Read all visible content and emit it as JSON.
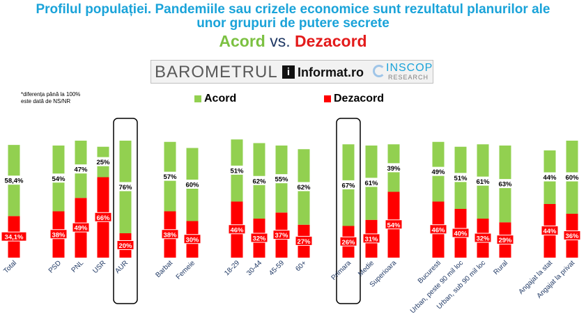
{
  "title_line1": "Profilul populației. Pandemiile sau crizele economice sunt rezultatul planurilor ale",
  "title_line2": "unor grupuri de putere secrete",
  "subtitle": {
    "acord": "Acord",
    "vs": "vs.",
    "dezacord": "Dezacord"
  },
  "logo": {
    "barometrul": "BAROMETRUL",
    "i": "i",
    "informat": "Informat.ro",
    "inscop": "INSCOP",
    "research": "RESEARCH"
  },
  "note": [
    "*diferența până la 100%",
    "este dată de NS/NR"
  ],
  "legend": {
    "acord": "Acord",
    "dezacord": "Dezacord"
  },
  "colors": {
    "acord": "#92d050",
    "dezacord": "#ff0000",
    "title": "#1aa3d9",
    "axis_labels": "#1f3864"
  },
  "chart_data": {
    "type": "bar",
    "stacked": true,
    "ylim": [
      0,
      100
    ],
    "categories": [
      "Total",
      "PSD",
      "PNL",
      "USR",
      "AUR",
      "Barbat",
      "Femeie",
      "18-29",
      "30-44",
      "45-59",
      "60+",
      "Primara",
      "Medie",
      "Superioara",
      "Bucuresti",
      "Urban, peste 90 mil loc",
      "Urban, sub 90 mil loc",
      "Rural",
      "Angajat la stat",
      "Angajat la privat"
    ],
    "series": [
      {
        "name": "Dezacord",
        "values": [
          34.1,
          38,
          49,
          66,
          20,
          38,
          30,
          46,
          32,
          37,
          27,
          26,
          31,
          54,
          46,
          40,
          32,
          29,
          44,
          36
        ],
        "labels": [
          "34,1%",
          "38%",
          "49%",
          "66%",
          "20%",
          "38%",
          "30%",
          "46%",
          "32%",
          "37%",
          "27%",
          "26%",
          "31%",
          "54%",
          "46%",
          "40%",
          "32%",
          "29%",
          "44%",
          "36%"
        ]
      },
      {
        "name": "Acord",
        "values": [
          58.4,
          54,
          47,
          25,
          76,
          57,
          60,
          51,
          62,
          55,
          62,
          67,
          61,
          39,
          49,
          51,
          61,
          63,
          44,
          60
        ],
        "labels": [
          "58,4%",
          "54%",
          "47%",
          "25%",
          "76%",
          "57%",
          "60%",
          "51%",
          "62%",
          "55%",
          "62%",
          "67%",
          "61%",
          "39%",
          "49%",
          "51%",
          "61%",
          "63%",
          "44%",
          "60%"
        ]
      }
    ],
    "highlighted": [
      "AUR",
      "Primara"
    ],
    "legend_position": "top"
  }
}
